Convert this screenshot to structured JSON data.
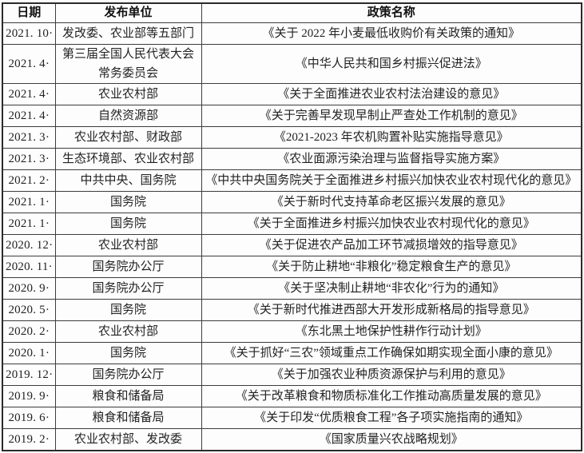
{
  "table": {
    "headers": {
      "date": "日期",
      "unit": "发布单位",
      "policy": "政策名称"
    },
    "rows": [
      {
        "date": "2021. 10·",
        "unit": "发改委、农业部等五部门",
        "policy": "《关于 2022 年小麦最低收购价有关政策的通知》"
      },
      {
        "date": "2021. 4·",
        "unit": "第三届全国人民代表大会常务委员会",
        "policy": "《中华人民共和国乡村振兴促进法》"
      },
      {
        "date": "2021. 4·",
        "unit": "农业农村部",
        "policy": "《关于全面推进农业农村法治建设的意见》"
      },
      {
        "date": "2021. 4·",
        "unit": "自然资源部",
        "policy": "《关于完善早发现早制止严查处工作机制的意见》"
      },
      {
        "date": "2021. 3·",
        "unit": "农业农村部、财政部",
        "policy": "《2021-2023 年农机购置补贴实施指导意见》"
      },
      {
        "date": "2021. 3·",
        "unit": "生态环境部、农业农村部",
        "policy": "《农业面源污染治理与监督指导实施方案》"
      },
      {
        "date": "2021. 2·",
        "unit": "中共中央、国务院",
        "policy": "《中共中央国务院关于全面推进乡村振兴加快农业农村现代化的意见》"
      },
      {
        "date": "2021. 1·",
        "unit": "国务院",
        "policy": "《关于新时代支持革命老区振兴发展的意见》"
      },
      {
        "date": "2021. 1·",
        "unit": "国务院",
        "policy": "《关于全面推进乡村振兴加快农业农村现代化的意见》"
      },
      {
        "date": "2020. 12·",
        "unit": "农业农村部",
        "policy": "《关于促进农产品加工环节减损增效的指导意见》"
      },
      {
        "date": "2020. 11·",
        "unit": "国务院办公厅",
        "policy": "《关于防止耕地“非粮化”稳定粮食生产的意见》"
      },
      {
        "date": "2020. 9·",
        "unit": "国务院办公厅",
        "policy": "《关于坚决制止耕地“非农化”行为的通知》"
      },
      {
        "date": "2020. 5·",
        "unit": "国务院",
        "policy": "《关于新时代推进西部大开发形成新格局的指导意见》"
      },
      {
        "date": "2020. 2·",
        "unit": "农业农村部",
        "policy": "《东北黑土地保护性耕作行动计划》"
      },
      {
        "date": "2020. 1·",
        "unit": "国务院",
        "policy": "《关于抓好“三农”领域重点工作确保如期实现全面小康的意见》"
      },
      {
        "date": "2019. 12·",
        "unit": "国务院办公厅",
        "policy": "《关于加强农业种质资源保护与利用的意见》"
      },
      {
        "date": "2019. 9·",
        "unit": "粮食和储备局",
        "policy": "《关于改革粮食和物质标准化工作推动高质量发展的意见》"
      },
      {
        "date": "2019. 6·",
        "unit": "粮食和储备局",
        "policy": "《关于印发“优质粮食工程”各子项实施指南的通知》"
      },
      {
        "date": "2019. 2·",
        "unit": "农业农村部、发改委",
        "policy": "《国家质量兴农战略规划》"
      }
    ]
  },
  "colors": {
    "text": "#222222",
    "border": "#3c3c3c",
    "background": "#fdfdfd"
  }
}
